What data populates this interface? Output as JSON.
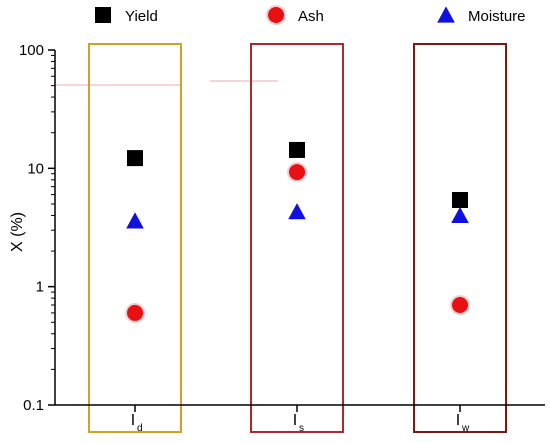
{
  "chart_data": {
    "type": "scatter",
    "ylabel": "X (%)",
    "yscale": "log",
    "ylim": [
      0.1,
      100
    ],
    "yticks": [
      "0.1",
      "1",
      "10",
      "100"
    ],
    "categories": [
      {
        "main": "I",
        "sub": "d",
        "box_color": "#d4a02a"
      },
      {
        "main": "I",
        "sub": "s",
        "box_color": "#b0282d"
      },
      {
        "main": "I",
        "sub": "w",
        "box_color": "#7a1a14"
      }
    ],
    "legend_position": "top",
    "series": [
      {
        "name": "Yield",
        "marker": "square",
        "color": "#000000",
        "values": [
          12.2,
          14.3,
          5.4
        ]
      },
      {
        "name": "Ash",
        "marker": "circle",
        "color": "#e81010",
        "values": [
          0.6,
          9.3,
          0.7
        ]
      },
      {
        "name": "Moisture",
        "marker": "triangle",
        "color": "#1010e0",
        "values": [
          3.6,
          4.3,
          4.0
        ]
      }
    ]
  }
}
